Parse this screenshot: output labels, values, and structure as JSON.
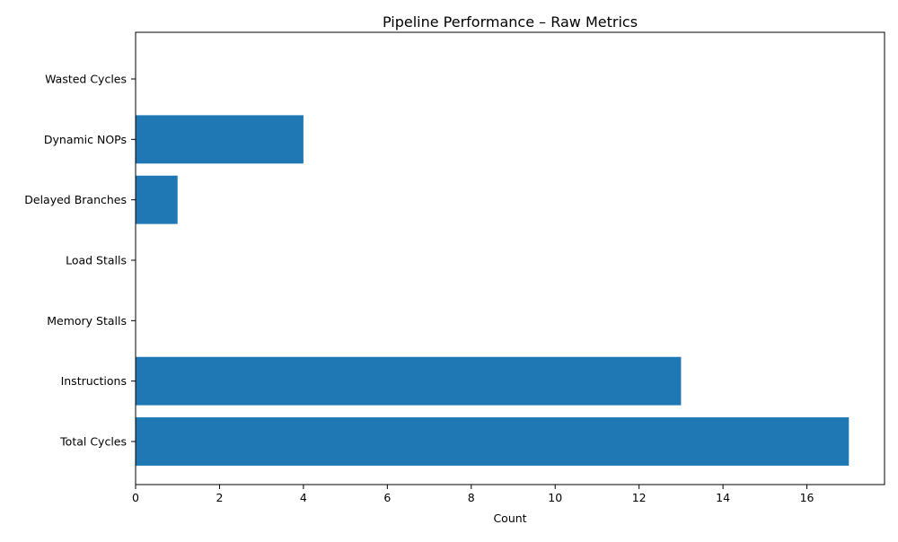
{
  "chart_data": {
    "type": "bar",
    "orientation": "horizontal",
    "title": "Pipeline Performance – Raw Metrics",
    "xlabel": "Count",
    "ylabel": "",
    "categories": [
      "Total Cycles",
      "Instructions",
      "Memory Stalls",
      "Load Stalls",
      "Delayed Branches",
      "Dynamic NOPs",
      "Wasted Cycles"
    ],
    "values": [
      17,
      13,
      0,
      0,
      1,
      4,
      0
    ],
    "xlim": [
      0,
      17.85
    ],
    "xticks": [
      0,
      2,
      4,
      6,
      8,
      10,
      12,
      14,
      16
    ],
    "grid": false,
    "legend": "none",
    "bar_color": "#1f77b4"
  }
}
